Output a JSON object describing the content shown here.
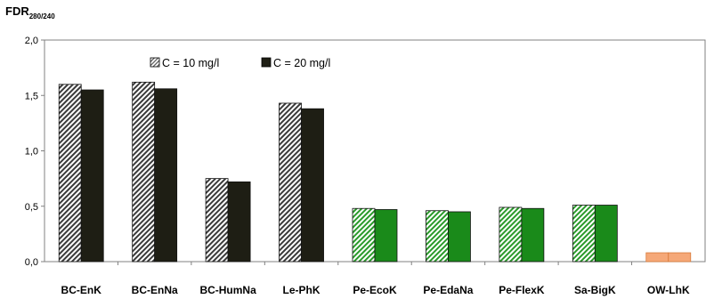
{
  "chart_data": {
    "type": "bar",
    "ylabel_main": "FDR",
    "ylabel_sub": "280/240",
    "xlabel": "",
    "ylim": [
      0,
      2.0
    ],
    "yticks": [
      "0,0",
      "0,5",
      "1,0",
      "1,5",
      "2,0"
    ],
    "ytick_values": [
      0,
      0.5,
      1.0,
      1.5,
      2.0
    ],
    "grid": false,
    "legend_position": "top-center",
    "categories": [
      "BC-EnK",
      "BC-EnNa",
      "BC-HumNa",
      "Le-PhK",
      "Pe-EcoK",
      "Pe-EdaNa",
      "Pe-FlexK",
      "Sa-BigK",
      "OW-LhK"
    ],
    "series": [
      {
        "name": "C = 10 mg/l",
        "values": [
          1.6,
          1.62,
          0.75,
          1.43,
          0.48,
          0.46,
          0.49,
          0.51,
          0.08
        ]
      },
      {
        "name": "C = 20 mg/l",
        "values": [
          1.55,
          1.56,
          0.72,
          1.38,
          0.47,
          0.45,
          0.48,
          0.51,
          0.08
        ]
      }
    ],
    "category_colors": [
      "#1e1e14",
      "#1e1e14",
      "#1e1e14",
      "#1e1e14",
      "#1a8a1a",
      "#1a8a1a",
      "#1a8a1a",
      "#1a8a1a",
      "#f5a878"
    ]
  }
}
